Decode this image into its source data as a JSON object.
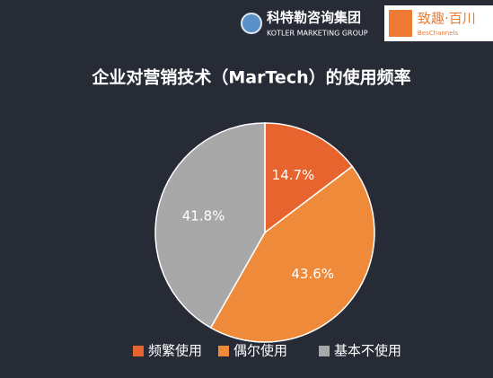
{
  "header": {
    "logo_left": "科特勒咨询集团",
    "logo_left_sub": "KOTLER MARKETING GROUP",
    "logo_right": "致趣·百川",
    "logo_right_sub": "BesChannels"
  },
  "chart_data": {
    "type": "pie",
    "title": "企业对营销技术（MarTech）的使用频率",
    "categories": [
      "频繁使用",
      "偶尔使用",
      "基本不使用"
    ],
    "values": [
      14.7,
      43.6,
      41.8
    ],
    "value_labels": [
      "14.7%",
      "43.6%",
      "41.8%"
    ],
    "colors": [
      "#e8642e",
      "#ee8a3a",
      "#a8a8a8"
    ],
    "legend": "bottom"
  }
}
